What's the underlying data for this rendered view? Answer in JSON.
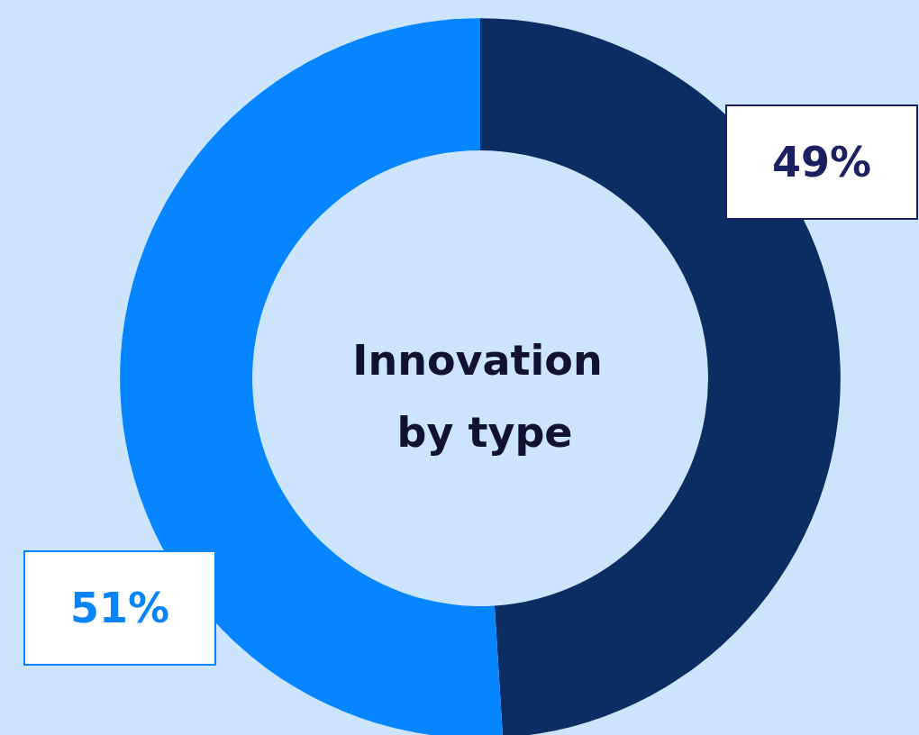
{
  "chart_data": {
    "type": "donut",
    "title": "Innovation by type",
    "categories": [
      null,
      null
    ],
    "values": [
      49,
      51
    ],
    "colors": [
      "#0b2d62",
      "#0585ff"
    ],
    "value_labels": [
      "49%",
      "51%"
    ]
  }
}
